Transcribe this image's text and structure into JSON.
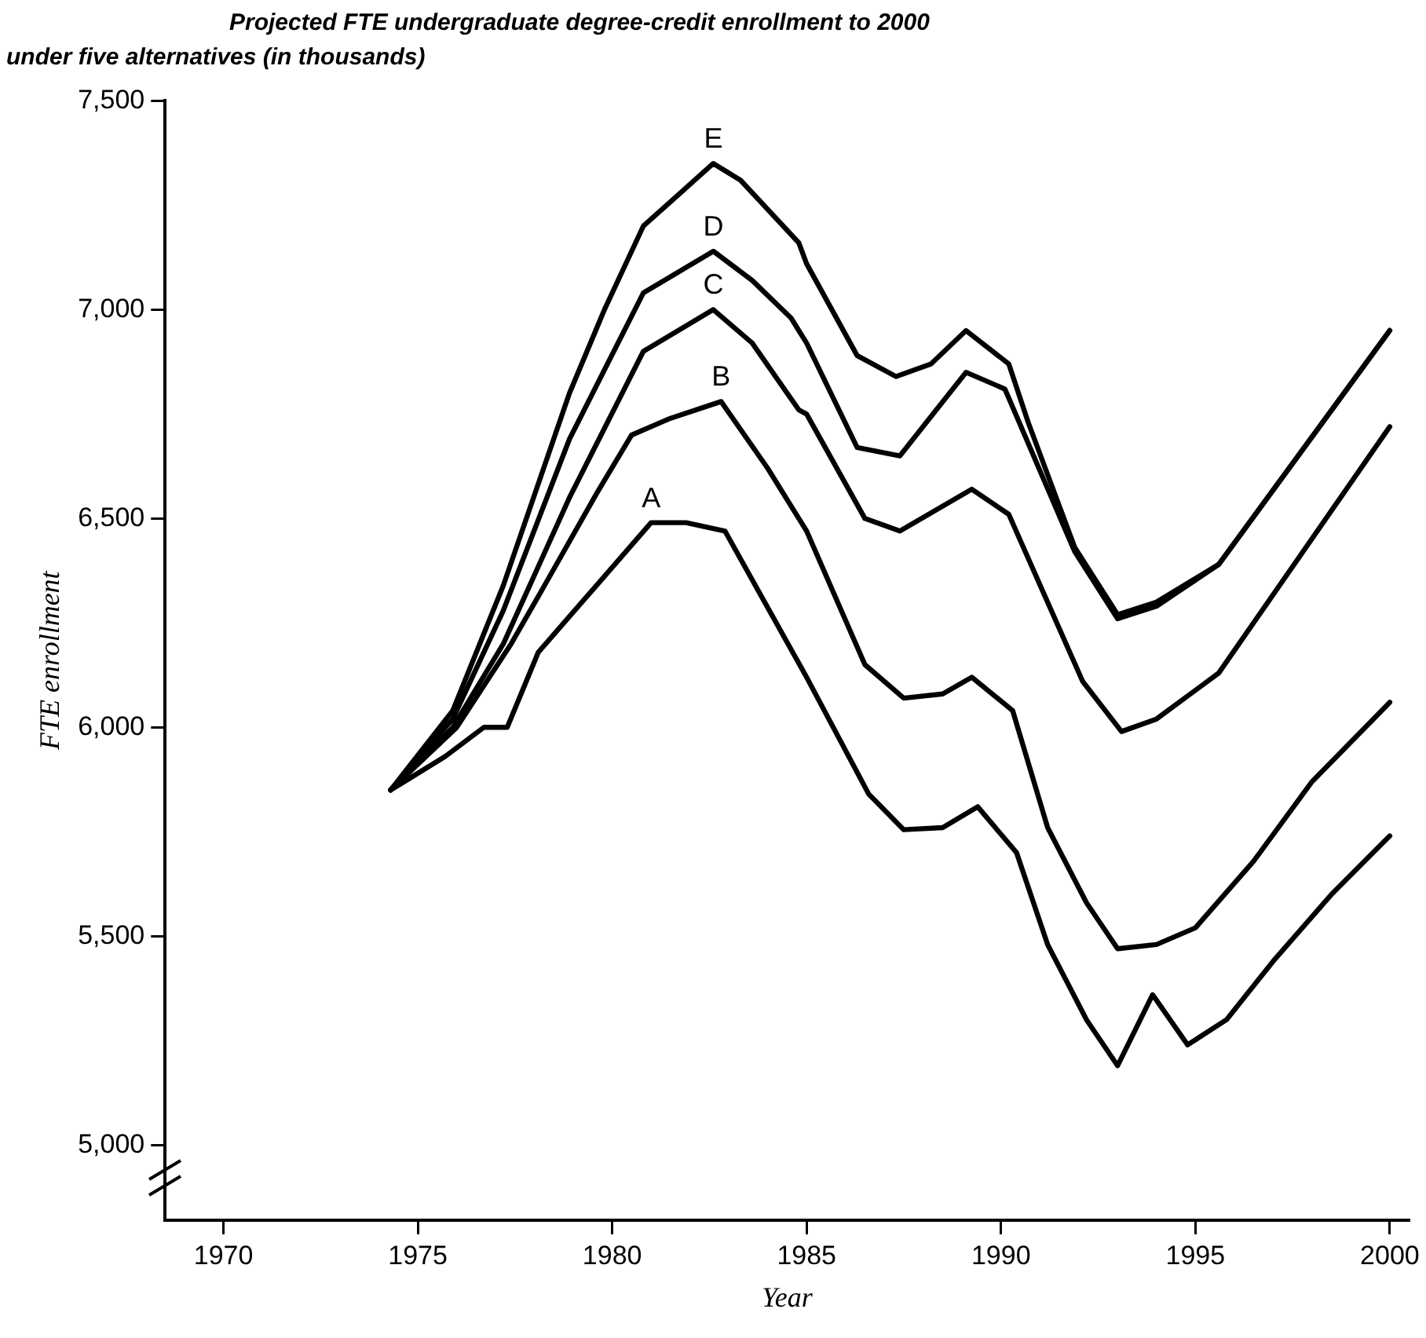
{
  "chart_data": {
    "type": "line",
    "title": "Projected FTE undergraduate degree-credit enrollment to 2000 under five alternatives (in thousands)",
    "xlabel": "Year",
    "ylabel": "FTE enrollment",
    "xlim": [
      1968.5,
      2000.5
    ],
    "xticks": [
      1970,
      1975,
      1980,
      1985,
      1990,
      1995,
      2000
    ],
    "ylim": [
      4820,
      7500
    ],
    "yticks": [
      {
        "value": 5000,
        "label": "5,000"
      },
      {
        "value": 5500,
        "label": "5,500"
      },
      {
        "value": 6000,
        "label": "6,000"
      },
      {
        "value": 6500,
        "label": "6,500"
      },
      {
        "value": 7000,
        "label": "7,000"
      },
      {
        "value": 7500,
        "label": "7,500"
      }
    ],
    "grid": false,
    "legend": false,
    "marker": "none",
    "line_style": "solid",
    "series": [
      {
        "name": "E",
        "color": "#000000",
        "x": [
          1974.3,
          1975.9,
          1977.2,
          1978.9,
          1979.8,
          1980.8,
          1982.6,
          1983.3,
          1984.8,
          1985,
          1986.3,
          1987.3,
          1988.2,
          1989.1,
          1990.2,
          1990.7,
          1991.9,
          1993,
          1994,
          1995.6,
          2000
        ],
        "values": [
          5850,
          6040,
          6340,
          6800,
          7000,
          7200,
          7350,
          7310,
          7160,
          7110,
          6890,
          6840,
          6870,
          6950,
          6870,
          6730,
          6430,
          6270,
          6300,
          6390,
          6950
        ]
      },
      {
        "name": "D",
        "color": "#000000",
        "x": [
          1974.3,
          1975.9,
          1977.2,
          1978.9,
          1980.8,
          1982.6,
          1983.6,
          1984.6,
          1985,
          1986.3,
          1987.4,
          1989.1,
          1990.1,
          1991.9,
          1993,
          1994,
          1995.6,
          2000
        ],
        "values": [
          5850,
          6020,
          6280,
          6690,
          7040,
          7140,
          7070,
          6980,
          6920,
          6670,
          6650,
          6850,
          6810,
          6420,
          6260,
          6290,
          6390,
          6950
        ]
      },
      {
        "name": "C",
        "color": "#000000",
        "x": [
          1974.3,
          1975.9,
          1977.2,
          1978.9,
          1980.8,
          1982.6,
          1983.6,
          1984.8,
          1985,
          1986.5,
          1987.4,
          1989.25,
          1990.2,
          1992.1,
          1993.1,
          1994,
          1995.6,
          2000
        ],
        "values": [
          5850,
          6000,
          6200,
          6550,
          6900,
          7000,
          6920,
          6760,
          6750,
          6500,
          6470,
          6570,
          6510,
          6110,
          5990,
          6020,
          6130,
          6720
        ]
      },
      {
        "name": "B",
        "color": "#000000",
        "x": [
          1974.3,
          1976,
          1977.4,
          1978.2,
          1979.6,
          1980.5,
          1981.5,
          1982.8,
          1984,
          1985,
          1986.5,
          1987.5,
          1988.5,
          1989.25,
          1990.3,
          1991.2,
          1992.2,
          1993,
          1994,
          1995,
          1996.5,
          1998,
          2000
        ],
        "values": [
          5850,
          6000,
          6200,
          6330,
          6560,
          6700,
          6740,
          6780,
          6620,
          6470,
          6150,
          6070,
          6080,
          6120,
          6040,
          5760,
          5580,
          5470,
          5480,
          5520,
          5680,
          5870,
          6060
        ]
      },
      {
        "name": "A",
        "color": "#000000",
        "x": [
          1974.3,
          1975.7,
          1976.7,
          1977.3,
          1978.1,
          1981,
          1981.9,
          1982.9,
          1985,
          1986.6,
          1987.5,
          1988.5,
          1989.4,
          1990.4,
          1991.2,
          1992.2,
          1993,
          1993.9,
          1994.8,
          1995.8,
          1997,
          1998.5,
          2000
        ],
        "values": [
          5850,
          5930,
          6000,
          6000,
          6180,
          6490,
          6490,
          6470,
          6120,
          5840,
          5755,
          5760,
          5810,
          5700,
          5480,
          5300,
          5190,
          5360,
          5240,
          5300,
          5440,
          5600,
          5740
        ]
      }
    ]
  }
}
